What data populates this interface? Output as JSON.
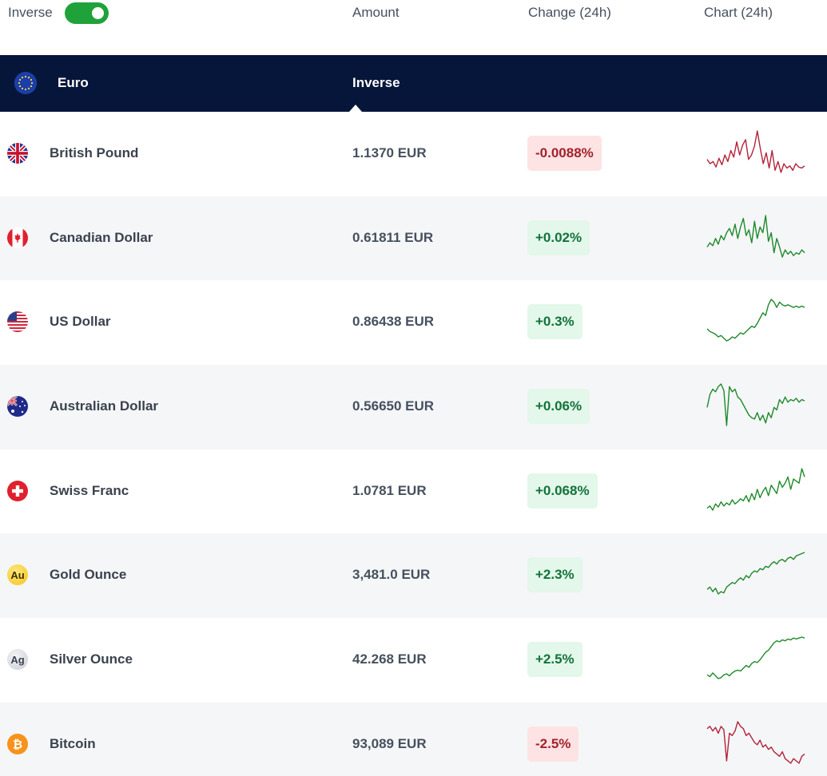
{
  "header": {
    "inverse_label": "Inverse",
    "inverse_on": true,
    "amount_label": "Amount",
    "change_label": "Change (24h)",
    "chart_label": "Chart (24h)"
  },
  "base": {
    "name": "Euro",
    "inverse_tab": "Inverse",
    "flag_icon": "eu-flag-icon"
  },
  "colors": {
    "navy": "#06163a",
    "toggle_green": "#1fa23a",
    "up_green": "#1e8a2b",
    "down_red": "#b3233a"
  },
  "rows": [
    {
      "name": "British Pound",
      "amount": "1.1370 EUR",
      "change": "-0.0088%",
      "dir": "down",
      "icon": "uk-flag-icon",
      "spark": [
        62,
        58,
        60,
        55,
        63,
        57,
        66,
        60,
        70,
        64,
        78,
        66,
        75,
        80,
        62,
        66,
        74,
        88,
        72,
        58,
        68,
        54,
        70,
        52,
        60,
        50,
        58,
        54,
        56,
        52,
        58,
        55,
        54,
        56
      ]
    },
    {
      "name": "Canadian Dollar",
      "amount": "0.61811 EUR",
      "change": "+0.02%",
      "dir": "up",
      "icon": "ca-flag-icon",
      "spark": [
        52,
        55,
        53,
        58,
        54,
        60,
        57,
        62,
        65,
        60,
        68,
        58,
        66,
        72,
        60,
        64,
        55,
        70,
        58,
        66,
        62,
        74,
        56,
        62,
        48,
        58,
        52,
        45,
        50,
        47,
        49,
        46,
        48,
        47,
        50,
        48
      ]
    },
    {
      "name": "US Dollar",
      "amount": "0.86438 EUR",
      "change": "+0.3%",
      "dir": "up",
      "icon": "us-flag-icon",
      "spark": [
        40,
        38,
        37,
        36,
        34,
        35,
        33,
        31,
        32,
        34,
        33,
        35,
        37,
        36,
        38,
        40,
        42,
        41,
        44,
        48,
        52,
        50,
        58,
        62,
        60,
        56,
        60,
        58,
        57,
        58,
        57,
        56,
        57,
        56,
        57,
        56
      ]
    },
    {
      "name": "Australian Dollar",
      "amount": "0.56650 EUR",
      "change": "+0.06%",
      "dir": "up",
      "icon": "au-flag-icon",
      "spark": [
        44,
        54,
        58,
        56,
        60,
        62,
        57,
        30,
        60,
        56,
        58,
        52,
        50,
        46,
        42,
        38,
        36,
        35,
        40,
        34,
        38,
        32,
        40,
        36,
        44,
        42,
        50,
        47,
        52,
        48,
        50,
        49,
        51,
        48,
        50,
        49
      ]
    },
    {
      "name": "Swiss Franc",
      "amount": "1.0781 EUR",
      "change": "+0.068%",
      "dir": "up",
      "icon": "ch-flag-icon",
      "spark": [
        38,
        40,
        36,
        42,
        39,
        44,
        40,
        43,
        41,
        46,
        42,
        44,
        47,
        45,
        50,
        44,
        52,
        46,
        56,
        48,
        54,
        58,
        50,
        60,
        56,
        52,
        64,
        58,
        62,
        68,
        56,
        66,
        64,
        62,
        76,
        68
      ]
    },
    {
      "name": "Gold Ounce",
      "amount": "3,481.0 EUR",
      "change": "+2.3%",
      "dir": "up",
      "icon": "gold-icon",
      "icon_text": "Au",
      "spark": [
        36,
        38,
        34,
        37,
        32,
        34,
        33,
        38,
        40,
        42,
        41,
        44,
        46,
        44,
        48,
        46,
        50,
        52,
        51,
        54,
        53,
        56,
        55,
        58,
        60,
        58,
        61,
        62,
        60,
        63,
        64,
        62,
        65,
        66,
        67,
        68
      ]
    },
    {
      "name": "Silver Ounce",
      "amount": "42.268 EUR",
      "change": "+2.5%",
      "dir": "up",
      "icon": "silver-icon",
      "icon_text": "Ag",
      "spark": [
        36,
        34,
        38,
        35,
        32,
        33,
        36,
        37,
        35,
        38,
        40,
        41,
        40,
        43,
        46,
        44,
        48,
        50,
        49,
        52,
        56,
        60,
        62,
        66,
        70,
        72,
        71,
        73,
        72,
        74,
        73,
        75,
        74,
        75,
        76,
        75
      ]
    },
    {
      "name": "Bitcoin",
      "amount": "93,089 EUR",
      "change": "-2.5%",
      "dir": "down",
      "icon": "bitcoin-icon",
      "spark": [
        64,
        66,
        62,
        65,
        60,
        66,
        63,
        36,
        60,
        58,
        62,
        70,
        66,
        64,
        58,
        60,
        56,
        52,
        50,
        54,
        48,
        50,
        46,
        48,
        44,
        42,
        40,
        44,
        38,
        36,
        34,
        38,
        36,
        34,
        40,
        42
      ]
    }
  ]
}
